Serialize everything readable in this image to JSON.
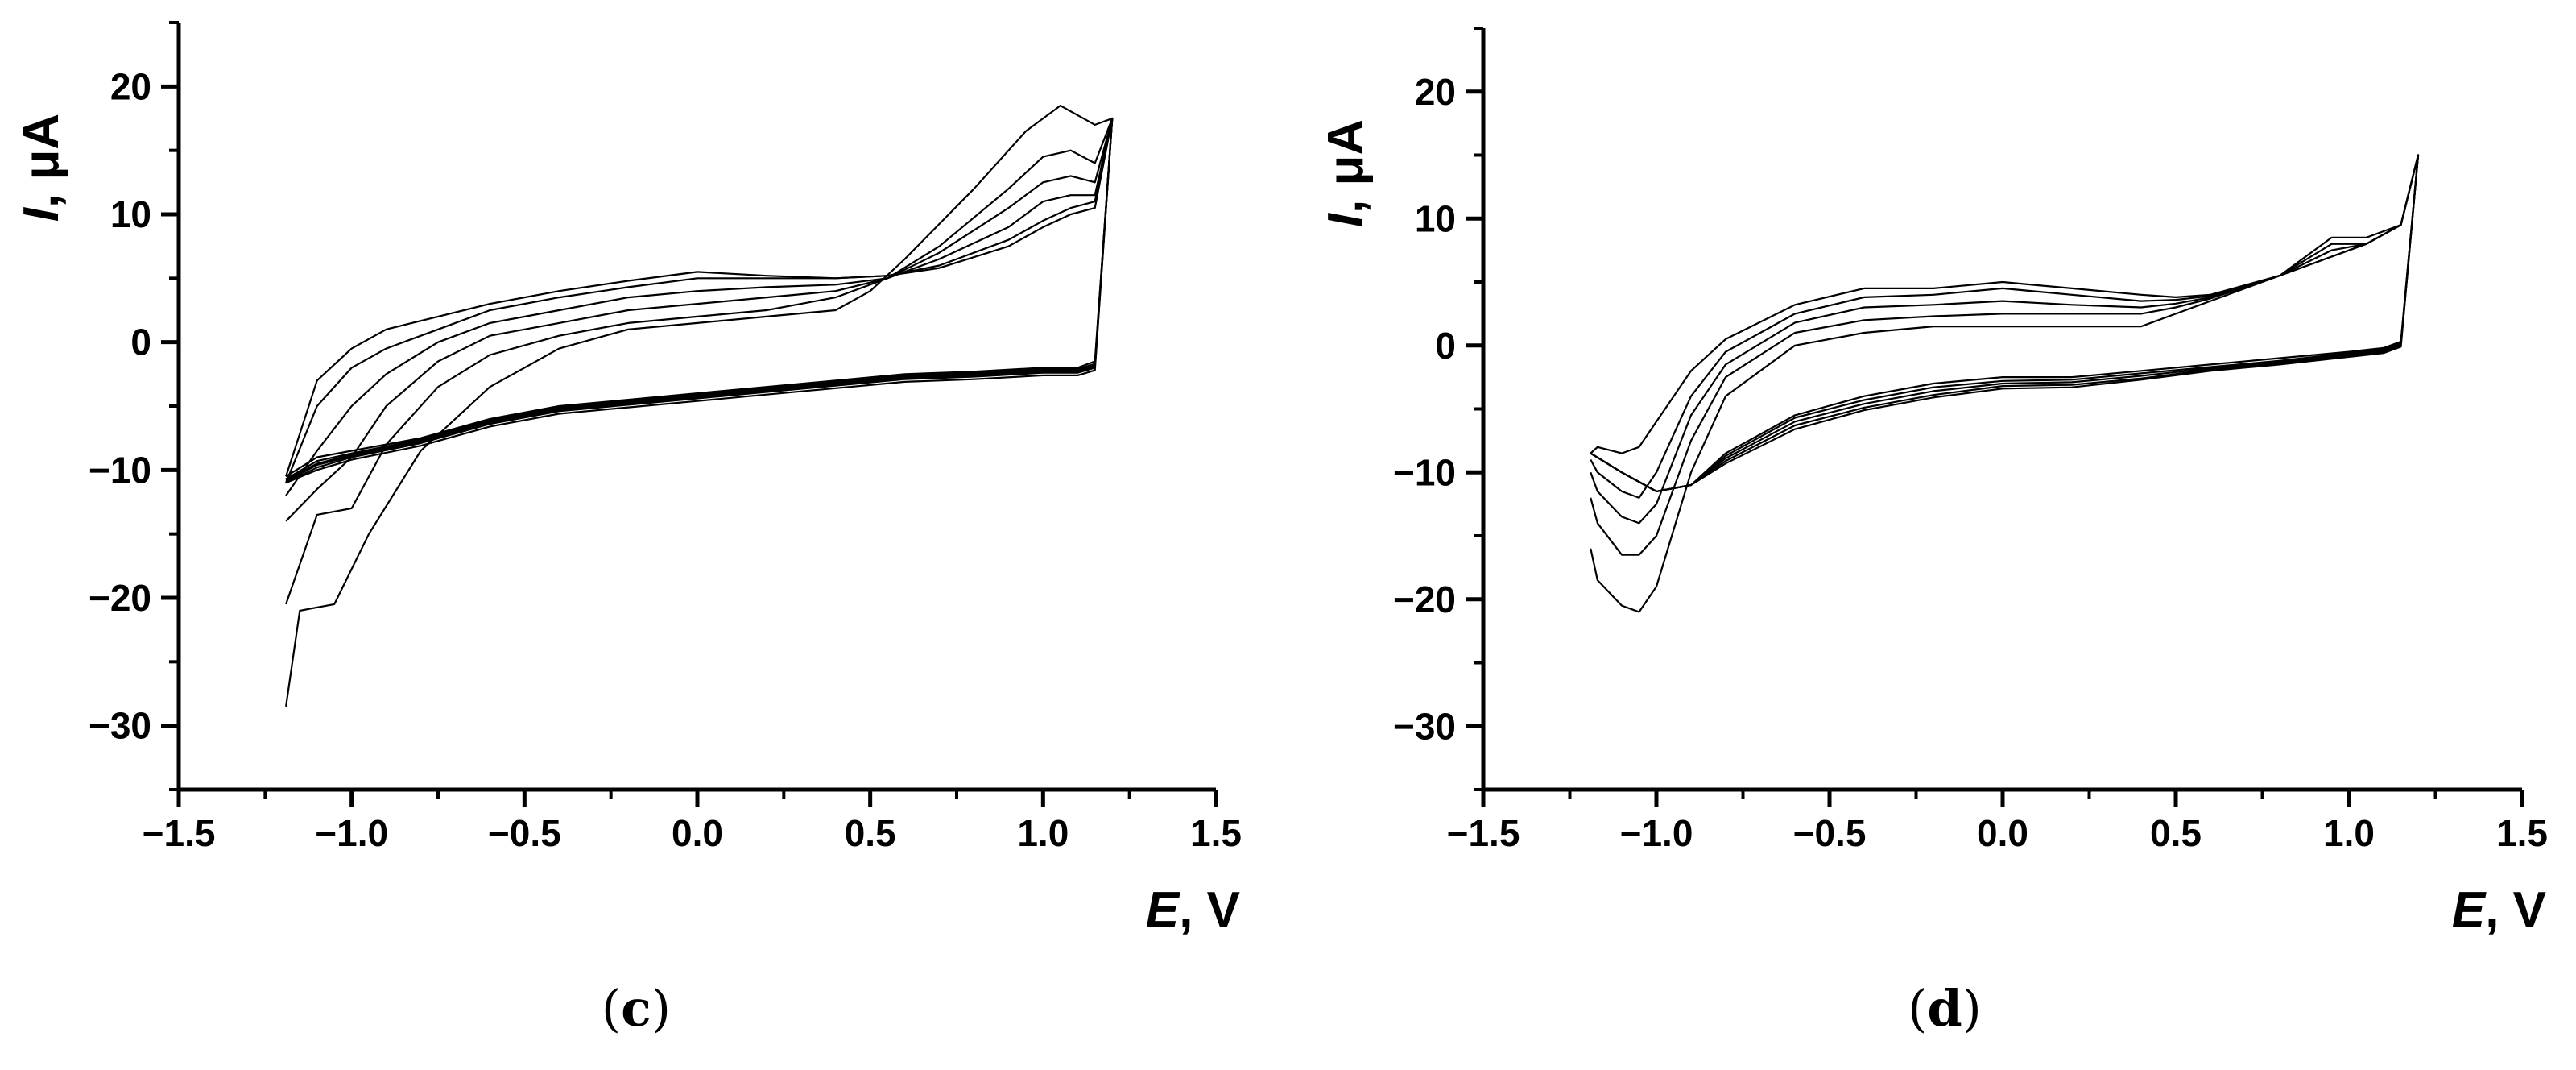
{
  "chart_data": [
    {
      "type": "line",
      "panel_label": "c",
      "xlabel": {
        "italic": "E",
        "rest": ", V"
      },
      "ylabel": {
        "italic": "I",
        "rest": ", μA"
      },
      "xlim": [
        -1.5,
        1.5
      ],
      "ylim": [
        -35,
        25
      ],
      "x_ticks": [
        -1.5,
        -1.0,
        -0.5,
        0.0,
        0.5,
        1.0,
        1.5
      ],
      "x_tick_labels": [
        "−1.5",
        "−1.0",
        "−0.5",
        "0.0",
        "0.5",
        "1.0",
        "1.5"
      ],
      "y_ticks": [
        -30,
        -20,
        -10,
        0,
        10,
        20
      ],
      "y_tick_labels": [
        "−30",
        "−20",
        "−10",
        "0",
        "10",
        "20"
      ],
      "x_minor_step": 0.25,
      "y_minor_step": 5,
      "grid": false,
      "line_color": "#000000",
      "series": [
        {
          "x": [
            -1.19,
            -1.15,
            -1.05,
            -0.95,
            -0.8,
            -0.6,
            -0.4,
            -0.2,
            0.0,
            0.2,
            0.4,
            0.5,
            0.6,
            0.8,
            0.95,
            1.05,
            1.15,
            1.2,
            1.15,
            1.1,
            1.0,
            0.8,
            0.6,
            0.4,
            0.2,
            0.0,
            -0.2,
            -0.4,
            -0.6,
            -0.8,
            -1.0,
            -1.1,
            -1.19
          ],
          "y": [
            -28.5,
            -21.0,
            -20.5,
            -15.0,
            -8.5,
            -3.5,
            -0.5,
            1.0,
            1.5,
            2.0,
            2.5,
            4.0,
            6.5,
            12.0,
            16.5,
            18.5,
            17.0,
            17.5,
            -1.5,
            -2.0,
            -2.0,
            -2.3,
            -2.5,
            -3.0,
            -3.5,
            -4.0,
            -4.5,
            -5.0,
            -6.0,
            -7.5,
            -8.5,
            -9.0,
            -10.5
          ]
        },
        {
          "x": [
            -1.19,
            -1.1,
            -1.0,
            -0.9,
            -0.75,
            -0.6,
            -0.4,
            -0.2,
            0.0,
            0.2,
            0.4,
            0.55,
            0.7,
            0.9,
            1.0,
            1.08,
            1.15,
            1.2,
            1.15,
            1.1,
            1.0,
            0.8,
            0.6,
            0.4,
            0.2,
            0.0,
            -0.2,
            -0.4,
            -0.6,
            -0.8,
            -1.0,
            -1.1,
            -1.19
          ],
          "y": [
            -20.5,
            -13.5,
            -13.0,
            -8.0,
            -3.5,
            -1.0,
            0.5,
            1.5,
            2.0,
            2.5,
            3.5,
            5.0,
            7.5,
            12.0,
            14.5,
            15.0,
            14.0,
            17.5,
            -1.7,
            -2.1,
            -2.1,
            -2.4,
            -2.6,
            -3.1,
            -3.6,
            -4.1,
            -4.6,
            -5.1,
            -6.1,
            -7.6,
            -8.7,
            -9.3,
            -10.7
          ]
        },
        {
          "x": [
            -1.19,
            -1.1,
            -1.0,
            -0.9,
            -0.75,
            -0.6,
            -0.4,
            -0.2,
            0.0,
            0.2,
            0.4,
            0.55,
            0.7,
            0.9,
            1.0,
            1.08,
            1.15,
            1.2,
            1.15,
            1.1,
            1.0,
            0.8,
            0.6,
            0.4,
            0.2,
            0.0,
            -0.2,
            -0.4,
            -0.6,
            -0.8,
            -1.0,
            -1.1,
            -1.19
          ],
          "y": [
            -14.0,
            -11.5,
            -9.0,
            -5.0,
            -1.5,
            0.5,
            1.5,
            2.5,
            3.0,
            3.5,
            4.0,
            5.0,
            7.0,
            10.5,
            12.5,
            13.0,
            12.5,
            17.5,
            -1.8,
            -2.2,
            -2.2,
            -2.5,
            -2.7,
            -3.2,
            -3.7,
            -4.2,
            -4.7,
            -5.2,
            -6.2,
            -7.7,
            -8.8,
            -9.5,
            -10.8
          ]
        },
        {
          "x": [
            -1.19,
            -1.1,
            -1.0,
            -0.9,
            -0.75,
            -0.6,
            -0.4,
            -0.2,
            0.0,
            0.2,
            0.4,
            0.55,
            0.7,
            0.9,
            1.0,
            1.08,
            1.15,
            1.2,
            1.15,
            1.1,
            1.0,
            0.8,
            0.6,
            0.4,
            0.2,
            0.0,
            -0.2,
            -0.4,
            -0.6,
            -0.8,
            -1.0,
            -1.1,
            -1.19
          ],
          "y": [
            -12.0,
            -8.5,
            -5.0,
            -2.5,
            0.0,
            1.5,
            2.5,
            3.5,
            4.0,
            4.3,
            4.5,
            5.0,
            6.5,
            9.0,
            11.0,
            11.5,
            11.5,
            17.5,
            -1.9,
            -2.3,
            -2.3,
            -2.6,
            -2.8,
            -3.3,
            -3.8,
            -4.3,
            -4.8,
            -5.3,
            -6.3,
            -7.8,
            -8.9,
            -9.6,
            -10.9
          ]
        },
        {
          "x": [
            -1.19,
            -1.1,
            -1.0,
            -0.9,
            -0.75,
            -0.6,
            -0.4,
            -0.2,
            0.0,
            0.2,
            0.4,
            0.55,
            0.7,
            0.9,
            1.0,
            1.08,
            1.15,
            1.2,
            1.15,
            1.1,
            1.0,
            0.8,
            0.6,
            0.4,
            0.2,
            0.0,
            -0.2,
            -0.4,
            -0.6,
            -0.8,
            -1.0,
            -1.1,
            -1.19
          ],
          "y": [
            -11.0,
            -5.0,
            -2.0,
            -0.5,
            1.0,
            2.5,
            3.5,
            4.3,
            5.0,
            5.0,
            5.0,
            5.2,
            6.0,
            8.0,
            9.5,
            10.5,
            11.0,
            17.5,
            -2.0,
            -2.4,
            -2.4,
            -2.7,
            -2.9,
            -3.4,
            -3.9,
            -4.4,
            -4.9,
            -5.4,
            -6.4,
            -7.9,
            -9.0,
            -9.8,
            -11.0
          ]
        },
        {
          "x": [
            -1.19,
            -1.1,
            -1.0,
            -0.9,
            -0.75,
            -0.6,
            -0.4,
            -0.2,
            0.0,
            0.2,
            0.4,
            0.55,
            0.7,
            0.9,
            1.0,
            1.08,
            1.15,
            1.2,
            1.15,
            1.1,
            1.0,
            0.8,
            0.6,
            0.4,
            0.2,
            0.0,
            -0.2,
            -0.4,
            -0.6,
            -0.8,
            -1.0,
            -1.1,
            -1.19
          ],
          "y": [
            -10.5,
            -3.0,
            -0.5,
            1.0,
            2.0,
            3.0,
            4.0,
            4.8,
            5.5,
            5.2,
            5.0,
            5.2,
            5.8,
            7.5,
            9.0,
            10.0,
            10.5,
            17.5,
            -2.2,
            -2.6,
            -2.6,
            -2.9,
            -3.1,
            -3.6,
            -4.1,
            -4.6,
            -5.1,
            -5.6,
            -6.6,
            -8.1,
            -9.2,
            -10.0,
            -11.0
          ]
        }
      ]
    },
    {
      "type": "line",
      "panel_label": "d",
      "xlabel": {
        "italic": "E",
        "rest": ", V"
      },
      "ylabel": {
        "italic": "I",
        "rest": ", μA"
      },
      "xlim": [
        -1.5,
        1.5
      ],
      "ylim": [
        -35,
        25
      ],
      "x_ticks": [
        -1.5,
        -1.0,
        -0.5,
        0.0,
        0.5,
        1.0,
        1.5
      ],
      "x_tick_labels": [
        "−1.5",
        "−1.0",
        "−0.5",
        "0.0",
        "0.5",
        "1.0",
        "1.5"
      ],
      "y_ticks": [
        -30,
        -20,
        -10,
        0,
        10,
        20
      ],
      "y_tick_labels": [
        "−30",
        "−20",
        "−10",
        "0",
        "10",
        "20"
      ],
      "x_minor_step": 0.25,
      "y_minor_step": 5,
      "grid": false,
      "line_color": "#000000",
      "series": [
        {
          "x": [
            -1.19,
            -1.17,
            -1.1,
            -1.05,
            -1.0,
            -0.9,
            -0.8,
            -0.6,
            -0.4,
            -0.2,
            0.0,
            0.2,
            0.4,
            0.5,
            0.6,
            0.8,
            0.95,
            1.05,
            1.15,
            1.2,
            1.15,
            1.1,
            1.0,
            0.8,
            0.6,
            0.4,
            0.2,
            0.0,
            -0.2,
            -0.4,
            -0.6,
            -0.8,
            -0.9,
            -1.0,
            -1.1,
            -1.19
          ],
          "y": [
            -16.0,
            -18.5,
            -20.5,
            -21.0,
            -19.0,
            -10.0,
            -4.0,
            0.0,
            1.0,
            1.5,
            1.5,
            1.5,
            1.5,
            2.5,
            3.5,
            5.5,
            7.0,
            8.0,
            9.5,
            15.0,
            0.3,
            -0.2,
            -0.5,
            -1.0,
            -1.5,
            -2.0,
            -2.5,
            -2.5,
            -3.0,
            -4.0,
            -5.5,
            -8.5,
            -11.0,
            -11.5,
            -10.0,
            -8.5
          ]
        },
        {
          "x": [
            -1.19,
            -1.17,
            -1.1,
            -1.05,
            -1.0,
            -0.9,
            -0.8,
            -0.6,
            -0.4,
            -0.2,
            0.0,
            0.2,
            0.4,
            0.5,
            0.6,
            0.8,
            0.95,
            1.05,
            1.15,
            1.2,
            1.15,
            1.1,
            1.0,
            0.8,
            0.6,
            0.4,
            0.2,
            0.0,
            -0.2,
            -0.4,
            -0.6,
            -0.8,
            -0.9,
            -1.0,
            -1.1,
            -1.19
          ],
          "y": [
            -12.0,
            -14.0,
            -16.5,
            -16.5,
            -15.0,
            -7.5,
            -2.5,
            1.0,
            2.0,
            2.3,
            2.5,
            2.5,
            2.5,
            3.0,
            3.7,
            5.5,
            7.0,
            8.0,
            9.5,
            15.0,
            0.2,
            -0.3,
            -0.6,
            -1.2,
            -1.7,
            -2.2,
            -2.7,
            -2.8,
            -3.3,
            -4.3,
            -5.7,
            -8.7,
            -11.0,
            -11.5,
            -10.0,
            -8.5
          ]
        },
        {
          "x": [
            -1.19,
            -1.17,
            -1.1,
            -1.05,
            -1.0,
            -0.9,
            -0.8,
            -0.6,
            -0.4,
            -0.2,
            0.0,
            0.2,
            0.4,
            0.5,
            0.6,
            0.8,
            0.95,
            1.05,
            1.15,
            1.2,
            1.15,
            1.1,
            1.0,
            0.8,
            0.6,
            0.4,
            0.2,
            0.0,
            -0.2,
            -0.4,
            -0.6,
            -0.8,
            -0.9,
            -1.0,
            -1.1,
            -1.19
          ],
          "y": [
            -10.0,
            -11.5,
            -13.5,
            -14.0,
            -12.5,
            -5.5,
            -1.5,
            1.8,
            3.0,
            3.2,
            3.5,
            3.2,
            3.0,
            3.3,
            3.8,
            5.5,
            7.5,
            8.0,
            9.5,
            15.0,
            0.1,
            -0.4,
            -0.7,
            -1.3,
            -1.8,
            -2.4,
            -2.9,
            -3.0,
            -3.6,
            -4.6,
            -6.0,
            -8.9,
            -11.0,
            -11.5,
            -10.0,
            -8.5
          ]
        },
        {
          "x": [
            -1.19,
            -1.17,
            -1.1,
            -1.05,
            -1.0,
            -0.9,
            -0.8,
            -0.6,
            -0.4,
            -0.2,
            0.0,
            0.2,
            0.4,
            0.5,
            0.6,
            0.8,
            0.95,
            1.05,
            1.15,
            1.2,
            1.15,
            1.1,
            1.0,
            0.8,
            0.6,
            0.4,
            0.2,
            0.0,
            -0.2,
            -0.4,
            -0.6,
            -0.8,
            -0.9,
            -1.0,
            -1.1,
            -1.19
          ],
          "y": [
            -9.0,
            -10.0,
            -11.5,
            -12.0,
            -10.0,
            -4.0,
            -0.5,
            2.5,
            3.8,
            4.0,
            4.5,
            4.0,
            3.5,
            3.6,
            3.9,
            5.5,
            8.0,
            8.0,
            9.5,
            15.0,
            0.0,
            -0.5,
            -0.8,
            -1.4,
            -1.9,
            -2.6,
            -3.1,
            -3.2,
            -3.9,
            -4.9,
            -6.3,
            -9.1,
            -11.0,
            -11.5,
            -10.0,
            -8.5
          ]
        },
        {
          "x": [
            -1.19,
            -1.17,
            -1.1,
            -1.05,
            -1.0,
            -0.9,
            -0.8,
            -0.6,
            -0.4,
            -0.2,
            0.0,
            0.2,
            0.4,
            0.5,
            0.6,
            0.8,
            0.95,
            1.05,
            1.15,
            1.2,
            1.15,
            1.1,
            1.0,
            0.8,
            0.6,
            0.4,
            0.2,
            0.0,
            -0.2,
            -0.4,
            -0.6,
            -0.8,
            -0.9,
            -1.0,
            -1.1,
            -1.19
          ],
          "y": [
            -8.5,
            -8.0,
            -8.5,
            -8.0,
            -6.0,
            -2.0,
            0.5,
            3.2,
            4.5,
            4.5,
            5.0,
            4.5,
            4.0,
            3.8,
            4.0,
            5.5,
            8.5,
            8.5,
            9.5,
            15.0,
            -0.1,
            -0.6,
            -0.9,
            -1.5,
            -2.0,
            -2.7,
            -3.3,
            -3.4,
            -4.1,
            -5.1,
            -6.6,
            -9.3,
            -11.0,
            -11.5,
            -10.0,
            -8.5
          ]
        }
      ]
    }
  ]
}
